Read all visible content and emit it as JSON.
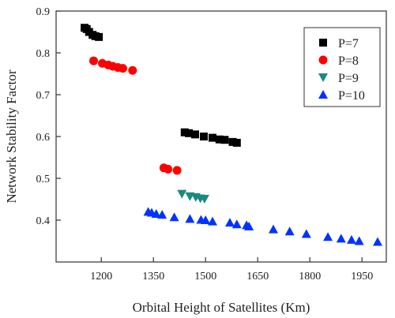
{
  "chart_data": {
    "type": "scatter",
    "xlabel": "Orbital Height of Satellites (Km)",
    "ylabel": "Network Stability Factor",
    "xlim": [
      1070,
      2020
    ],
    "ylim": [
      0.3,
      0.9
    ],
    "x_ticks": [
      1200,
      1350,
      1500,
      1650,
      1800,
      1950
    ],
    "y_ticks": [
      0.4,
      0.5,
      0.6,
      0.7,
      0.8,
      0.9
    ],
    "grid": false,
    "legend_position": "top-right",
    "series": [
      {
        "name": "P=7",
        "marker": "square",
        "color": "#000000",
        "points": [
          [
            1152,
            0.86
          ],
          [
            1158,
            0.857
          ],
          [
            1165,
            0.85
          ],
          [
            1175,
            0.843
          ],
          [
            1183,
            0.84
          ],
          [
            1193,
            0.838
          ],
          [
            1440,
            0.61
          ],
          [
            1452,
            0.608
          ],
          [
            1470,
            0.605
          ],
          [
            1495,
            0.6
          ],
          [
            1520,
            0.597
          ],
          [
            1540,
            0.593
          ],
          [
            1555,
            0.592
          ],
          [
            1578,
            0.587
          ],
          [
            1590,
            0.585
          ]
        ]
      },
      {
        "name": "P=8",
        "marker": "circle",
        "color": "#ff0000",
        "points": [
          [
            1178,
            0.781
          ],
          [
            1203,
            0.775
          ],
          [
            1220,
            0.771
          ],
          [
            1233,
            0.768
          ],
          [
            1248,
            0.765
          ],
          [
            1262,
            0.763
          ],
          [
            1290,
            0.758
          ],
          [
            1380,
            0.525
          ],
          [
            1392,
            0.522
          ],
          [
            1418,
            0.519
          ]
        ]
      },
      {
        "name": "P=9",
        "marker": "triangle-down",
        "color": "#1a8a80",
        "points": [
          [
            1432,
            0.463
          ],
          [
            1455,
            0.457
          ],
          [
            1472,
            0.455
          ],
          [
            1485,
            0.452
          ],
          [
            1497,
            0.451
          ]
        ]
      },
      {
        "name": "P=10",
        "marker": "triangle-up",
        "color": "#0033ff",
        "points": [
          [
            1335,
            0.42
          ],
          [
            1345,
            0.418
          ],
          [
            1358,
            0.415
          ],
          [
            1375,
            0.413
          ],
          [
            1410,
            0.407
          ],
          [
            1455,
            0.403
          ],
          [
            1487,
            0.401
          ],
          [
            1500,
            0.4
          ],
          [
            1520,
            0.397
          ],
          [
            1570,
            0.394
          ],
          [
            1590,
            0.39
          ],
          [
            1618,
            0.388
          ],
          [
            1625,
            0.385
          ],
          [
            1695,
            0.378
          ],
          [
            1742,
            0.373
          ],
          [
            1790,
            0.367
          ],
          [
            1852,
            0.36
          ],
          [
            1890,
            0.356
          ],
          [
            1920,
            0.353
          ],
          [
            1942,
            0.35
          ],
          [
            1995,
            0.348
          ]
        ]
      }
    ]
  }
}
